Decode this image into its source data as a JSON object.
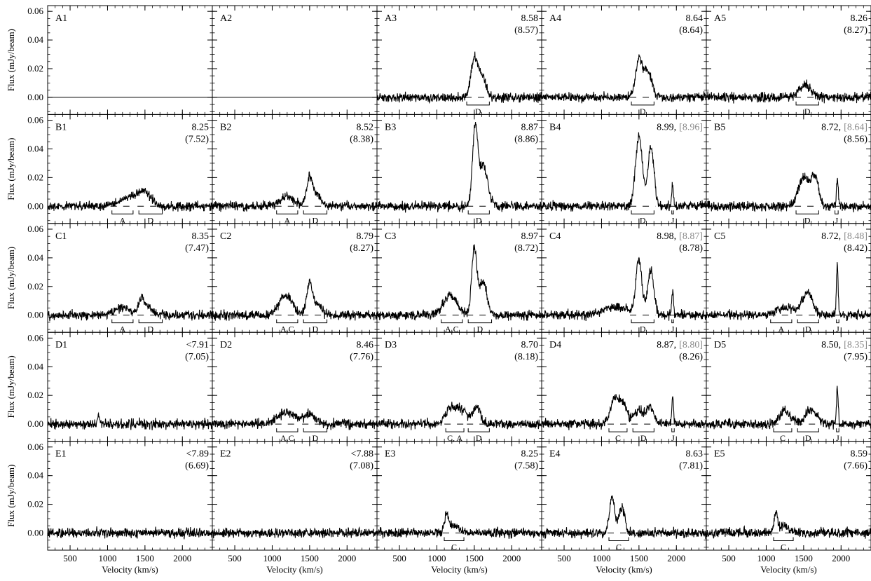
{
  "chart_data": {
    "type": "line",
    "grid": false,
    "layout": "5x5 panel grid",
    "xlabel": "Velocity (km/s)",
    "ylabel": "Flux (mJy/beam)",
    "xlim": [
      200,
      2400
    ],
    "ylim": [
      -0.012,
      0.064
    ],
    "xticks": [
      "500",
      "1000",
      "1500",
      "2000"
    ],
    "yticks": [
      "0.00",
      "0.02",
      "0.04",
      "0.06"
    ],
    "colors": {
      "black": "#000000",
      "red": "#e8282a",
      "green": "#1a9a1a",
      "blue": "#2a2ae8",
      "gray": "#8a8a8a"
    },
    "panels": [
      {
        "id": "A1",
        "primary": "",
        "bracket": "",
        "secondary": "",
        "secondary_color": "",
        "components": [],
        "peaks": [],
        "flat": true
      },
      {
        "id": "A2",
        "primary": "",
        "bracket": "",
        "secondary": "",
        "secondary_color": "",
        "components": [],
        "peaks": [],
        "flat": true
      },
      {
        "id": "A3",
        "primary": "8.58",
        "bracket": "",
        "secondary": "(8.57)",
        "secondary_color": "green",
        "components": [
          {
            "label": "D",
            "v0": 1380,
            "v1": 1720
          }
        ],
        "peaks": [
          {
            "v": 1500,
            "a": 0.026,
            "w": 45
          },
          {
            "v": 1600,
            "a": 0.014,
            "w": 55
          }
        ]
      },
      {
        "id": "A4",
        "primary": "8.64",
        "bracket": "",
        "secondary": "(8.64)",
        "secondary_color": "green",
        "components": [
          {
            "label": "D",
            "v0": 1380,
            "v1": 1720
          }
        ],
        "peaks": [
          {
            "v": 1500,
            "a": 0.026,
            "w": 45
          },
          {
            "v": 1620,
            "a": 0.018,
            "w": 55
          }
        ]
      },
      {
        "id": "A5",
        "primary": "8.26",
        "bracket": "",
        "secondary": "(8.27)",
        "secondary_color": "green",
        "components": [
          {
            "label": "D",
            "v0": 1380,
            "v1": 1720
          }
        ],
        "peaks": [
          {
            "v": 1520,
            "a": 0.009,
            "w": 80
          }
        ]
      },
      {
        "id": "B1",
        "primary": "8.25",
        "bracket": "",
        "secondary": "(7.52)",
        "secondary_color": "red",
        "components": [
          {
            "label": "A",
            "v0": 1040,
            "v1": 1360
          },
          {
            "label": "D",
            "v0": 1400,
            "v1": 1750
          }
        ],
        "peaks": [
          {
            "v": 1300,
            "a": 0.006,
            "w": 150
          },
          {
            "v": 1500,
            "a": 0.008,
            "w": 90
          }
        ]
      },
      {
        "id": "B2",
        "primary": "8.52",
        "bracket": "",
        "secondary": "(8.38)",
        "secondary_color": "red",
        "components": [
          {
            "label": "A",
            "v0": 1040,
            "v1": 1360
          },
          {
            "label": "D",
            "v0": 1400,
            "v1": 1750
          }
        ],
        "peaks": [
          {
            "v": 1200,
            "a": 0.007,
            "w": 90
          },
          {
            "v": 1500,
            "a": 0.02,
            "w": 40
          },
          {
            "v": 1600,
            "a": 0.008,
            "w": 50
          }
        ]
      },
      {
        "id": "B3",
        "primary": "8.87",
        "bracket": "",
        "secondary": "(8.86)",
        "secondary_color": "green",
        "components": [
          {
            "label": "D",
            "v0": 1400,
            "v1": 1720
          }
        ],
        "peaks": [
          {
            "v": 1510,
            "a": 0.052,
            "w": 35
          },
          {
            "v": 1620,
            "a": 0.028,
            "w": 60
          }
        ]
      },
      {
        "id": "B4",
        "primary": "8.99,",
        "bracket": "[8.96]",
        "secondary": "",
        "secondary_color": "",
        "components": [
          {
            "label": "D",
            "v0": 1380,
            "v1": 1720
          },
          {
            "label": "J",
            "v0": 1920,
            "v1": 1980
          }
        ],
        "peaks": [
          {
            "v": 1500,
            "a": 0.05,
            "w": 45
          },
          {
            "v": 1660,
            "a": 0.042,
            "w": 40
          },
          {
            "v": 1950,
            "a": 0.016,
            "w": 12
          }
        ]
      },
      {
        "id": "B5",
        "primary": "8.72,",
        "bracket": "[8.64]",
        "secondary": "(8.56)",
        "secondary_color": "green",
        "components": [
          {
            "label": "D",
            "v0": 1380,
            "v1": 1720
          },
          {
            "label": "J",
            "v0": 1900,
            "v1": 1980
          }
        ],
        "peaks": [
          {
            "v": 1500,
            "a": 0.02,
            "w": 70
          },
          {
            "v": 1650,
            "a": 0.02,
            "w": 50
          },
          {
            "v": 1950,
            "a": 0.02,
            "w": 12
          }
        ]
      },
      {
        "id": "C1",
        "primary": "8.35",
        "bracket": "",
        "secondary": "(7.47)",
        "secondary_color": "red",
        "components": [
          {
            "label": "A",
            "v0": 1040,
            "v1": 1360
          },
          {
            "label": "D",
            "v0": 1400,
            "v1": 1750
          }
        ],
        "peaks": [
          {
            "v": 1200,
            "a": 0.005,
            "w": 120
          },
          {
            "v": 1450,
            "a": 0.011,
            "w": 35
          },
          {
            "v": 1550,
            "a": 0.006,
            "w": 60
          }
        ]
      },
      {
        "id": "C2",
        "primary": "8.79",
        "bracket": "",
        "secondary": "(8.27)",
        "secondary_color": "red",
        "components": [
          {
            "label": "A,C",
            "v0": 1040,
            "v1": 1360
          },
          {
            "label": "D",
            "v0": 1400,
            "v1": 1750
          }
        ],
        "peaks": [
          {
            "v": 1180,
            "a": 0.014,
            "w": 90
          },
          {
            "v": 1500,
            "a": 0.022,
            "w": 40
          },
          {
            "v": 1620,
            "a": 0.007,
            "w": 50
          }
        ]
      },
      {
        "id": "C3",
        "primary": "8.97",
        "bracket": "",
        "secondary": "(8.72)",
        "secondary_color": "red",
        "components": [
          {
            "label": "A,C",
            "v0": 1040,
            "v1": 1360
          },
          {
            "label": "D",
            "v0": 1400,
            "v1": 1750
          }
        ],
        "peaks": [
          {
            "v": 1180,
            "a": 0.014,
            "w": 90
          },
          {
            "v": 1500,
            "a": 0.046,
            "w": 35
          },
          {
            "v": 1620,
            "a": 0.024,
            "w": 50
          }
        ]
      },
      {
        "id": "C4",
        "primary": "8.98,",
        "bracket": "[8.87]",
        "secondary": "(8.78)",
        "secondary_color": "green",
        "components": [
          {
            "label": "D",
            "v0": 1380,
            "v1": 1720
          },
          {
            "label": "J",
            "v0": 1920,
            "v1": 1980
          }
        ],
        "peaks": [
          {
            "v": 1200,
            "a": 0.006,
            "w": 150
          },
          {
            "v": 1500,
            "a": 0.038,
            "w": 40
          },
          {
            "v": 1660,
            "a": 0.032,
            "w": 40
          },
          {
            "v": 1950,
            "a": 0.018,
            "w": 12
          }
        ]
      },
      {
        "id": "C5",
        "primary": "8.72,",
        "bracket": "[8.48]",
        "secondary": "(8.42)",
        "secondary_color": "green",
        "components": [
          {
            "label": "A",
            "v0": 1040,
            "v1": 1360
          },
          {
            "label": "D",
            "v0": 1400,
            "v1": 1720
          },
          {
            "label": "J",
            "v0": 1920,
            "v1": 1990
          }
        ],
        "peaks": [
          {
            "v": 1250,
            "a": 0.005,
            "w": 130
          },
          {
            "v": 1550,
            "a": 0.015,
            "w": 70
          },
          {
            "v": 1950,
            "a": 0.034,
            "w": 12
          }
        ]
      },
      {
        "id": "D1",
        "primary": "<7.91",
        "bracket": "",
        "secondary": "(7.05)",
        "secondary_color": "blue",
        "components": [],
        "peaks": [
          {
            "v": 880,
            "a": 0.006,
            "w": 15
          }
        ]
      },
      {
        "id": "D2",
        "primary": "8.46",
        "bracket": "",
        "secondary": "(7.76)",
        "secondary_color": "red",
        "components": [
          {
            "label": "A,C",
            "v0": 1040,
            "v1": 1360
          },
          {
            "label": "D",
            "v0": 1400,
            "v1": 1750
          }
        ],
        "peaks": [
          {
            "v": 1200,
            "a": 0.008,
            "w": 120
          },
          {
            "v": 1500,
            "a": 0.007,
            "w": 70
          }
        ]
      },
      {
        "id": "D3",
        "primary": "8.70",
        "bracket": "",
        "secondary": "(8.18)",
        "secondary_color": "red",
        "components": [
          {
            "label": "C, A",
            "v0": 1100,
            "v1": 1380
          },
          {
            "label": "D",
            "v0": 1400,
            "v1": 1720
          }
        ],
        "peaks": [
          {
            "v": 1200,
            "a": 0.012,
            "w": 80
          },
          {
            "v": 1350,
            "a": 0.008,
            "w": 60
          },
          {
            "v": 1530,
            "a": 0.012,
            "w": 50
          }
        ]
      },
      {
        "id": "D4",
        "primary": "8.87,",
        "bracket": "[8.80]",
        "secondary": "(8.26)",
        "secondary_color": "red",
        "components": [
          {
            "label": "C",
            "v0": 1080,
            "v1": 1360
          },
          {
            "label": "D",
            "v0": 1400,
            "v1": 1720
          },
          {
            "label": "J",
            "v0": 1920,
            "v1": 1990
          }
        ],
        "peaks": [
          {
            "v": 1180,
            "a": 0.018,
            "w": 60
          },
          {
            "v": 1300,
            "a": 0.012,
            "w": 50
          },
          {
            "v": 1500,
            "a": 0.01,
            "w": 60
          },
          {
            "v": 1650,
            "a": 0.012,
            "w": 50
          },
          {
            "v": 1950,
            "a": 0.018,
            "w": 12
          }
        ]
      },
      {
        "id": "D5",
        "primary": "8.50,",
        "bracket": "[8.35]",
        "secondary": "(7.95)",
        "secondary_color": "red",
        "components": [
          {
            "label": "C",
            "v0": 1080,
            "v1": 1360
          },
          {
            "label": "D",
            "v0": 1400,
            "v1": 1720
          },
          {
            "label": "J",
            "v0": 1920,
            "v1": 1990
          }
        ],
        "peaks": [
          {
            "v": 1250,
            "a": 0.01,
            "w": 70
          },
          {
            "v": 1600,
            "a": 0.01,
            "w": 80
          },
          {
            "v": 1950,
            "a": 0.025,
            "w": 12
          }
        ]
      },
      {
        "id": "E1",
        "primary": "<7.89",
        "bracket": "",
        "secondary": "(6.69)",
        "secondary_color": "blue",
        "components": [],
        "peaks": []
      },
      {
        "id": "E2",
        "primary": "<7.88",
        "bracket": "",
        "secondary": "(7.08)",
        "secondary_color": "blue",
        "components": [],
        "peaks": []
      },
      {
        "id": "E3",
        "primary": "8.25",
        "bracket": "",
        "secondary": "(7.58)",
        "secondary_color": "red",
        "components": [
          {
            "label": "C",
            "v0": 1080,
            "v1": 1380
          }
        ],
        "peaks": [
          {
            "v": 1130,
            "a": 0.013,
            "w": 25
          },
          {
            "v": 1230,
            "a": 0.005,
            "w": 70
          }
        ]
      },
      {
        "id": "E4",
        "primary": "8.63",
        "bracket": "",
        "secondary": "(7.81)",
        "secondary_color": "red",
        "components": [
          {
            "label": "C",
            "v0": 1080,
            "v1": 1380
          }
        ],
        "peaks": [
          {
            "v": 1140,
            "a": 0.025,
            "w": 35
          },
          {
            "v": 1270,
            "a": 0.018,
            "w": 40
          }
        ]
      },
      {
        "id": "E5",
        "primary": "8.59",
        "bracket": "",
        "secondary": "(7.66)",
        "secondary_color": "red",
        "components": [
          {
            "label": "C",
            "v0": 1080,
            "v1": 1380
          }
        ],
        "peaks": [
          {
            "v": 1130,
            "a": 0.013,
            "w": 25
          },
          {
            "v": 1240,
            "a": 0.005,
            "w": 60
          }
        ]
      }
    ]
  }
}
